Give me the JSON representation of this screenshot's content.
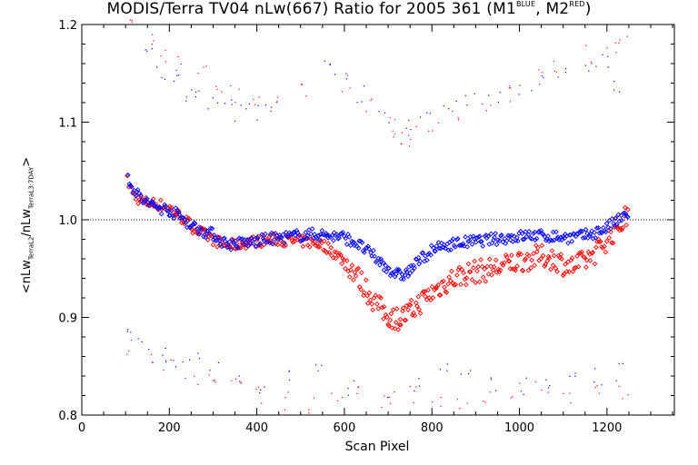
{
  "title": {
    "main": "MODIS/Terra TV04 nLw(667) Ratio for 2005 361 (M1",
    "sup1": "BLUE",
    "mid": ", M2",
    "sup2": "RED",
    "end": ")"
  },
  "axes": {
    "xlabel": "Scan Pixel",
    "ylabel_prefix": "<nLw",
    "ylabel_sub1": "TerraL2",
    "ylabel_mid": "/nLw",
    "ylabel_sub2": "TerraL3:7DAY",
    "ylabel_suffix": ">"
  },
  "chart_data": {
    "type": "scatter",
    "xlim": [
      0,
      1354
    ],
    "ylim": [
      0.8,
      1.2
    ],
    "xticks": [
      0,
      200,
      400,
      600,
      800,
      1000,
      1200
    ],
    "yticks": [
      0.8,
      0.9,
      1.0,
      1.1,
      1.2
    ],
    "ytick_labels": [
      "0.8",
      "0.9",
      "1.0",
      "1.1",
      "1.2"
    ],
    "reference_line": 1.0,
    "grid": false,
    "marker": "diamond",
    "colors": {
      "M1": "#0000ff",
      "M2": "#ff0000"
    },
    "series": [
      {
        "key": "M1",
        "color": "#0000ff",
        "x": [
          105,
          120,
          140,
          160,
          180,
          200,
          220,
          240,
          260,
          280,
          300,
          320,
          340,
          360,
          380,
          400,
          420,
          440,
          460,
          480,
          500,
          520,
          540,
          560,
          580,
          600,
          620,
          640,
          660,
          680,
          700,
          710,
          720,
          730,
          740,
          750,
          760,
          780,
          800,
          820,
          840,
          860,
          880,
          900,
          920,
          940,
          960,
          980,
          1000,
          1020,
          1040,
          1060,
          1080,
          1100,
          1120,
          1140,
          1160,
          1180,
          1200,
          1220,
          1240,
          1250
        ],
        "y": [
          1.045,
          1.03,
          1.02,
          1.015,
          1.012,
          1.01,
          1.005,
          0.998,
          0.992,
          0.988,
          0.985,
          0.978,
          0.975,
          0.976,
          0.977,
          0.978,
          0.98,
          0.981,
          0.982,
          0.983,
          0.984,
          0.985,
          0.985,
          0.984,
          0.983,
          0.982,
          0.978,
          0.972,
          0.965,
          0.957,
          0.95,
          0.947,
          0.944,
          0.943,
          0.945,
          0.948,
          0.953,
          0.962,
          0.968,
          0.972,
          0.975,
          0.976,
          0.977,
          0.978,
          0.979,
          0.98,
          0.981,
          0.982,
          0.983,
          0.984,
          0.984,
          0.983,
          0.983,
          0.982,
          0.982,
          0.983,
          0.985,
          0.988,
          0.992,
          0.998,
          1.003,
          1.008
        ]
      },
      {
        "key": "M2",
        "color": "#ff0000",
        "x": [
          105,
          120,
          140,
          160,
          180,
          200,
          220,
          240,
          260,
          280,
          300,
          320,
          340,
          360,
          380,
          400,
          420,
          440,
          460,
          480,
          500,
          520,
          540,
          560,
          580,
          600,
          620,
          640,
          660,
          680,
          700,
          710,
          720,
          730,
          740,
          750,
          760,
          780,
          800,
          820,
          840,
          860,
          880,
          900,
          920,
          940,
          960,
          980,
          1000,
          1020,
          1040,
          1060,
          1080,
          1100,
          1120,
          1140,
          1160,
          1180,
          1200,
          1220,
          1240,
          1250
        ],
        "y": [
          1.04,
          1.025,
          1.018,
          1.017,
          1.015,
          1.012,
          1.005,
          0.998,
          0.99,
          0.985,
          0.98,
          0.975,
          0.974,
          0.975,
          0.977,
          0.978,
          0.979,
          0.98,
          0.979,
          0.978,
          0.978,
          0.977,
          0.976,
          0.972,
          0.965,
          0.958,
          0.948,
          0.935,
          0.922,
          0.91,
          0.902,
          0.9,
          0.899,
          0.9,
          0.902,
          0.905,
          0.91,
          0.918,
          0.925,
          0.932,
          0.938,
          0.942,
          0.945,
          0.947,
          0.948,
          0.95,
          0.952,
          0.955,
          0.958,
          0.96,
          0.962,
          0.962,
          0.96,
          0.955,
          0.952,
          0.955,
          0.962,
          0.97,
          0.98,
          0.99,
          1.0,
          1.008
        ]
      }
    ],
    "outliers": [
      {
        "key": "M1",
        "color": "#0000ff",
        "x": [
          155,
          180,
          210,
          240,
          270,
          300,
          330,
          360,
          390,
          420,
          560,
          590,
          640,
          690,
          740,
          780,
          840,
          890,
          940,
          990,
          1040,
          1100,
          1160,
          1200,
          1220,
          105,
          140,
          180,
          220,
          260,
          300,
          360,
          420,
          480,
          540,
          610,
          700,
          760,
          820,
          880,
          940,
          1000,
          1060,
          1120,
          1180,
          1230
        ],
        "y": [
          1.17,
          1.15,
          1.14,
          1.13,
          1.125,
          1.12,
          1.115,
          1.11,
          1.11,
          1.115,
          1.16,
          1.15,
          1.13,
          1.11,
          1.1,
          1.105,
          1.115,
          1.12,
          1.125,
          1.13,
          1.14,
          1.15,
          1.16,
          1.165,
          1.14,
          0.88,
          0.87,
          0.865,
          0.86,
          0.855,
          0.845,
          0.835,
          0.83,
          0.84,
          0.845,
          0.83,
          0.825,
          0.83,
          0.845,
          0.84,
          0.835,
          0.83,
          0.83,
          0.835,
          0.84,
          0.845
        ]
      },
      {
        "key": "M2",
        "color": "#ff0000",
        "x": [
          120,
          150,
          190,
          230,
          270,
          310,
          350,
          400,
          450,
          500,
          600,
          650,
          700,
          720,
          740,
          760,
          800,
          860,
          920,
          980,
          1040,
          1090,
          1150,
          1210,
          1240,
          110,
          150,
          200,
          250,
          300,
          350,
          400,
          460,
          520,
          580,
          640,
          690,
          750,
          810,
          870,
          930,
          990,
          1050,
          1110,
          1170,
          1240
        ],
        "y": [
          1.2,
          1.19,
          1.17,
          1.16,
          1.15,
          1.14,
          1.13,
          1.12,
          1.125,
          1.13,
          1.14,
          1.12,
          1.1,
          1.09,
          1.085,
          1.09,
          1.1,
          1.11,
          1.12,
          1.13,
          1.145,
          1.16,
          1.17,
          1.18,
          1.19,
          0.87,
          0.86,
          0.85,
          0.84,
          0.835,
          0.83,
          0.82,
          0.815,
          0.81,
          0.82,
          0.825,
          0.815,
          0.82,
          0.81,
          0.815,
          0.82,
          0.825,
          0.83,
          0.82,
          0.83,
          0.825
        ]
      }
    ]
  }
}
